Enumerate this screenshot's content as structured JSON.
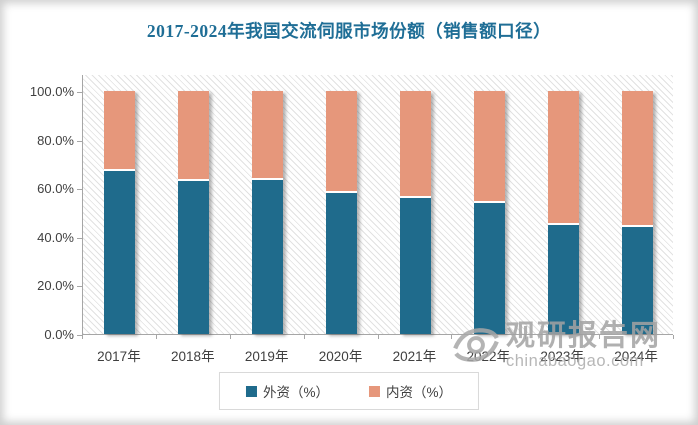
{
  "title": "2017-2024年我国交流伺服市场份额（销售额口径）",
  "chart_data": {
    "type": "bar",
    "subtype": "stacked-column-100",
    "title": "2017-2024年我国交流伺服市场份额（销售额口径）",
    "categories": [
      "2017年",
      "2018年",
      "2019年",
      "2020年",
      "2021年",
      "2022年",
      "2023年",
      "2024年"
    ],
    "series": [
      {
        "name": "外资（%）",
        "color": "#1F6B8C",
        "values": [
          67,
          63,
          63.5,
          58,
          56,
          54,
          45,
          44
        ]
      },
      {
        "name": "内资（%）",
        "color": "#E6977B",
        "values": [
          33,
          37,
          36.5,
          42,
          44,
          46,
          55,
          56
        ]
      }
    ],
    "ylim": [
      0,
      100
    ],
    "y_ticks": [
      {
        "value": 100,
        "label": "100.0%"
      },
      {
        "value": 80,
        "label": "80.0%"
      },
      {
        "value": 60,
        "label": "60.0%"
      },
      {
        "value": 40,
        "label": "40.0%"
      },
      {
        "value": 20,
        "label": "20.0%"
      },
      {
        "value": 0,
        "label": "0.0%"
      }
    ],
    "grid": false,
    "legend_position": "bottom"
  },
  "watermark": {
    "site_name": "观研报告网",
    "site_url": "chinabaogao.com"
  },
  "colors": {
    "title": "#1F6E96",
    "axis": "#A6A6A6",
    "label": "#3F3F3F",
    "foreign_series": "#1F6B8C",
    "domestic_series": "#E6977B",
    "legend_border": "#D9D9D9"
  }
}
